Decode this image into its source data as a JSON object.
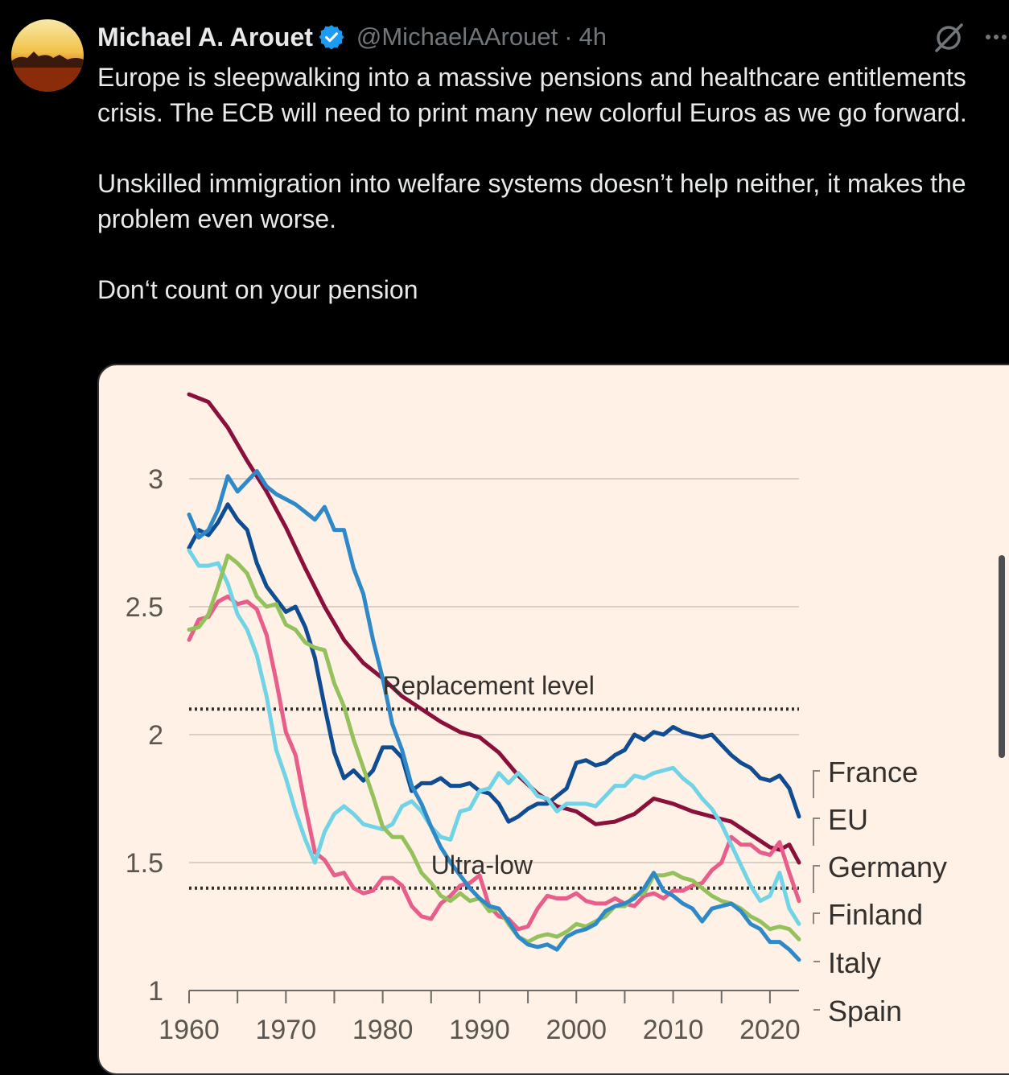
{
  "tweet": {
    "author_name": "Michael A. Arouet",
    "handle": "@MichaelAArouet",
    "separator": "·",
    "time": "4h",
    "verified": true,
    "paragraphs": [
      "Europe is sleepwalking into a massive pensions and healthcare entitlements crisis. The ECB will need to print many new colorful Euros as we go forward.",
      "Unskilled immigration into welfare systems doesn’t help neither, it makes the problem even worse.",
      "Don‘t count on your pension"
    ],
    "icons": [
      "grok-icon",
      "more-icon",
      "verified-badge-icon"
    ],
    "colors": {
      "background": "#000000",
      "text": "#e7e9ea",
      "muted": "#71767b",
      "verified": "#1d9bf0",
      "chart_bg": "#fff1e5"
    }
  },
  "chart_data": {
    "type": "line",
    "title": "",
    "xlabel": "",
    "ylabel": "",
    "xlim": [
      1960,
      2023
    ],
    "ylim": [
      1,
      3.3
    ],
    "xticks": [
      1960,
      1970,
      1980,
      1990,
      2000,
      2010,
      2020
    ],
    "yticks": [
      1,
      1.5,
      2,
      2.5,
      3
    ],
    "ytick_labels": [
      "1",
      "1.5",
      "2",
      "2.5",
      "3"
    ],
    "grid": true,
    "reference_lines": [
      {
        "label": "Replacement level",
        "y": 2.1
      },
      {
        "label": "Ultra-low",
        "y": 1.4
      }
    ],
    "legend_placement": "right",
    "series": [
      {
        "name": "France",
        "color": "#0f4c92",
        "x": [
          1960,
          1961,
          1962,
          1963,
          1964,
          1965,
          1966,
          1967,
          1968,
          1969,
          1970,
          1971,
          1972,
          1973,
          1974,
          1975,
          1976,
          1977,
          1978,
          1979,
          1980,
          1981,
          1982,
          1983,
          1984,
          1985,
          1986,
          1987,
          1988,
          1989,
          1990,
          1991,
          1992,
          1993,
          1994,
          1995,
          1996,
          1997,
          1998,
          1999,
          2000,
          2001,
          2002,
          2003,
          2004,
          2005,
          2006,
          2007,
          2008,
          2009,
          2010,
          2011,
          2012,
          2013,
          2014,
          2015,
          2016,
          2017,
          2018,
          2019,
          2020,
          2021,
          2022,
          2023
        ],
        "y": [
          2.73,
          2.8,
          2.78,
          2.83,
          2.9,
          2.84,
          2.8,
          2.67,
          2.58,
          2.53,
          2.48,
          2.5,
          2.42,
          2.3,
          2.11,
          1.93,
          1.83,
          1.86,
          1.82,
          1.86,
          1.95,
          1.95,
          1.91,
          1.78,
          1.81,
          1.81,
          1.83,
          1.8,
          1.8,
          1.81,
          1.78,
          1.77,
          1.73,
          1.66,
          1.68,
          1.71,
          1.73,
          1.73,
          1.76,
          1.79,
          1.89,
          1.9,
          1.88,
          1.89,
          1.92,
          1.94,
          2.0,
          1.98,
          2.01,
          2.0,
          2.03,
          2.01,
          2.0,
          1.99,
          2.0,
          1.96,
          1.92,
          1.89,
          1.87,
          1.83,
          1.82,
          1.84,
          1.79,
          1.68
        ]
      },
      {
        "name": "EU",
        "color": "#8b0f3b",
        "x": [
          1960,
          1962,
          1964,
          1966,
          1968,
          1970,
          1972,
          1974,
          1976,
          1978,
          1980,
          1982,
          1984,
          1986,
          1988,
          1990,
          1992,
          1994,
          1996,
          1998,
          2000,
          2002,
          2004,
          2006,
          2008,
          2010,
          2012,
          2014,
          2016,
          2018,
          2020,
          2021,
          2022,
          2023
        ],
        "y": [
          3.33,
          3.3,
          3.2,
          3.07,
          2.95,
          2.81,
          2.65,
          2.5,
          2.37,
          2.28,
          2.22,
          2.15,
          2.1,
          2.05,
          2.01,
          1.99,
          1.93,
          1.84,
          1.77,
          1.72,
          1.7,
          1.65,
          1.66,
          1.69,
          1.75,
          1.73,
          1.7,
          1.68,
          1.66,
          1.61,
          1.56,
          1.55,
          1.57,
          1.5
        ]
      },
      {
        "name": "Germany",
        "color": "#e85d8a",
        "x": [
          1960,
          1961,
          1962,
          1963,
          1964,
          1965,
          1966,
          1967,
          1968,
          1969,
          1970,
          1971,
          1972,
          1973,
          1974,
          1975,
          1976,
          1977,
          1978,
          1979,
          1980,
          1981,
          1982,
          1983,
          1984,
          1985,
          1986,
          1987,
          1988,
          1989,
          1990,
          1991,
          1992,
          1993,
          1994,
          1995,
          1996,
          1997,
          1998,
          1999,
          2000,
          2001,
          2002,
          2003,
          2004,
          2005,
          2006,
          2007,
          2008,
          2009,
          2010,
          2011,
          2012,
          2013,
          2014,
          2015,
          2016,
          2017,
          2018,
          2019,
          2020,
          2021,
          2022,
          2023
        ],
        "y": [
          2.37,
          2.45,
          2.46,
          2.52,
          2.54,
          2.51,
          2.52,
          2.49,
          2.39,
          2.21,
          2.01,
          1.92,
          1.72,
          1.54,
          1.51,
          1.45,
          1.46,
          1.4,
          1.38,
          1.39,
          1.44,
          1.44,
          1.41,
          1.33,
          1.29,
          1.28,
          1.34,
          1.37,
          1.41,
          1.42,
          1.45,
          1.33,
          1.29,
          1.28,
          1.24,
          1.25,
          1.32,
          1.37,
          1.36,
          1.36,
          1.38,
          1.35,
          1.34,
          1.34,
          1.36,
          1.34,
          1.33,
          1.37,
          1.38,
          1.36,
          1.39,
          1.39,
          1.41,
          1.42,
          1.47,
          1.5,
          1.6,
          1.57,
          1.57,
          1.54,
          1.53,
          1.58,
          1.46,
          1.35
        ]
      },
      {
        "name": "Finland",
        "color": "#71d4e6",
        "x": [
          1960,
          1961,
          1962,
          1963,
          1964,
          1965,
          1966,
          1967,
          1968,
          1969,
          1970,
          1971,
          1972,
          1973,
          1974,
          1975,
          1976,
          1977,
          1978,
          1979,
          1980,
          1981,
          1982,
          1983,
          1984,
          1985,
          1986,
          1987,
          1988,
          1989,
          1990,
          1991,
          1992,
          1993,
          1994,
          1995,
          1996,
          1997,
          1998,
          1999,
          2000,
          2001,
          2002,
          2003,
          2004,
          2005,
          2006,
          2007,
          2008,
          2009,
          2010,
          2011,
          2012,
          2013,
          2014,
          2015,
          2016,
          2017,
          2018,
          2019,
          2020,
          2021,
          2022,
          2023
        ],
        "y": [
          2.72,
          2.66,
          2.66,
          2.67,
          2.59,
          2.47,
          2.41,
          2.31,
          2.15,
          1.94,
          1.83,
          1.7,
          1.59,
          1.5,
          1.62,
          1.69,
          1.72,
          1.69,
          1.65,
          1.64,
          1.63,
          1.65,
          1.72,
          1.74,
          1.7,
          1.64,
          1.6,
          1.59,
          1.7,
          1.71,
          1.78,
          1.79,
          1.85,
          1.81,
          1.85,
          1.81,
          1.76,
          1.75,
          1.7,
          1.73,
          1.73,
          1.73,
          1.72,
          1.76,
          1.8,
          1.8,
          1.84,
          1.83,
          1.85,
          1.86,
          1.87,
          1.83,
          1.8,
          1.75,
          1.71,
          1.65,
          1.57,
          1.49,
          1.41,
          1.35,
          1.37,
          1.46,
          1.32,
          1.26
        ]
      },
      {
        "name": "Italy",
        "color": "#94c15b",
        "x": [
          1960,
          1961,
          1962,
          1963,
          1964,
          1965,
          1966,
          1967,
          1968,
          1969,
          1970,
          1971,
          1972,
          1973,
          1974,
          1975,
          1976,
          1977,
          1978,
          1979,
          1980,
          1981,
          1982,
          1983,
          1984,
          1985,
          1986,
          1987,
          1988,
          1989,
          1990,
          1991,
          1992,
          1993,
          1994,
          1995,
          1996,
          1997,
          1998,
          1999,
          2000,
          2001,
          2002,
          2003,
          2004,
          2005,
          2006,
          2007,
          2008,
          2009,
          2010,
          2011,
          2012,
          2013,
          2014,
          2015,
          2016,
          2017,
          2018,
          2019,
          2020,
          2021,
          2022,
          2023
        ],
        "y": [
          2.41,
          2.42,
          2.47,
          2.58,
          2.7,
          2.67,
          2.63,
          2.54,
          2.5,
          2.51,
          2.43,
          2.41,
          2.36,
          2.34,
          2.33,
          2.2,
          2.11,
          1.98,
          1.87,
          1.76,
          1.64,
          1.6,
          1.6,
          1.54,
          1.46,
          1.42,
          1.37,
          1.35,
          1.38,
          1.35,
          1.36,
          1.31,
          1.32,
          1.26,
          1.21,
          1.19,
          1.21,
          1.22,
          1.21,
          1.23,
          1.26,
          1.25,
          1.27,
          1.29,
          1.33,
          1.33,
          1.37,
          1.38,
          1.45,
          1.45,
          1.46,
          1.44,
          1.43,
          1.4,
          1.37,
          1.35,
          1.34,
          1.32,
          1.29,
          1.27,
          1.24,
          1.25,
          1.24,
          1.2
        ]
      },
      {
        "name": "Spain",
        "color": "#2f89c8",
        "x": [
          1960,
          1961,
          1962,
          1963,
          1964,
          1965,
          1966,
          1967,
          1968,
          1969,
          1970,
          1971,
          1972,
          1973,
          1974,
          1975,
          1976,
          1977,
          1978,
          1979,
          1980,
          1981,
          1982,
          1983,
          1984,
          1985,
          1986,
          1987,
          1988,
          1989,
          1990,
          1991,
          1992,
          1993,
          1994,
          1995,
          1996,
          1997,
          1998,
          1999,
          2000,
          2001,
          2002,
          2003,
          2004,
          2005,
          2006,
          2007,
          2008,
          2009,
          2010,
          2011,
          2012,
          2013,
          2014,
          2015,
          2016,
          2017,
          2018,
          2019,
          2020,
          2021,
          2022,
          2023
        ],
        "y": [
          2.86,
          2.77,
          2.8,
          2.88,
          3.01,
          2.95,
          2.99,
          3.03,
          2.97,
          2.94,
          2.92,
          2.9,
          2.87,
          2.84,
          2.89,
          2.8,
          2.8,
          2.65,
          2.55,
          2.37,
          2.22,
          2.04,
          1.94,
          1.8,
          1.73,
          1.64,
          1.56,
          1.5,
          1.45,
          1.4,
          1.36,
          1.33,
          1.32,
          1.27,
          1.21,
          1.18,
          1.17,
          1.18,
          1.16,
          1.21,
          1.23,
          1.24,
          1.26,
          1.31,
          1.33,
          1.34,
          1.36,
          1.4,
          1.46,
          1.39,
          1.37,
          1.34,
          1.32,
          1.27,
          1.32,
          1.33,
          1.34,
          1.31,
          1.26,
          1.24,
          1.19,
          1.19,
          1.16,
          1.12
        ]
      }
    ]
  }
}
